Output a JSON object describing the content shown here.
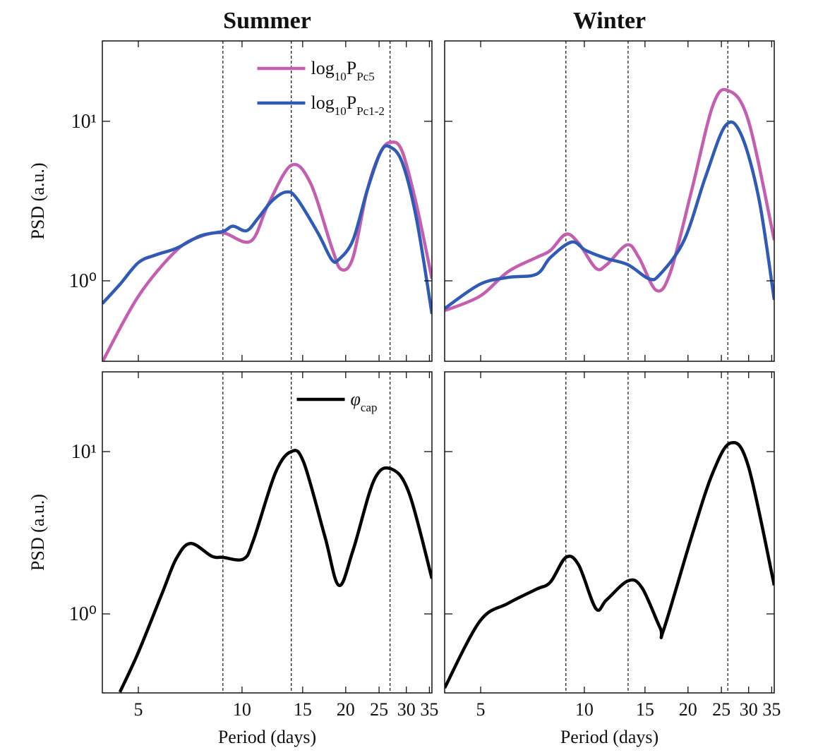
{
  "chart_data": [
    {
      "type": "line",
      "title": "Summer",
      "ylabel": "PSD (a.u.)",
      "xscale": "log",
      "yscale": "log",
      "xlim": [
        3.93,
        35.6
      ],
      "ylim": [
        0.313,
        31.9
      ],
      "xticks": [
        5,
        10,
        15,
        20,
        25,
        30,
        35
      ],
      "xtick_labels": false,
      "yticks": [
        {
          "value": 1,
          "label": "10⁰"
        },
        {
          "value": 10,
          "label": "10¹"
        }
      ],
      "ytick_labels": true,
      "vlines": [
        8.8,
        13.9,
        26.9
      ],
      "legend": "upper center",
      "series": [
        {
          "name": [
            "log",
            "10",
            "P",
            "Pc5"
          ],
          "color": "#c45fb0",
          "x": [
            3.93,
            5.0,
            6.45,
            7.6,
            8.8,
            10.6,
            11.9,
            13.9,
            15.8,
            18.2,
            19.4,
            21.0,
            23.1,
            25.3,
            27.2,
            29.2,
            32.1,
            35.6
          ],
          "values": [
            0.31,
            0.8,
            1.55,
            1.9,
            2.0,
            1.77,
            3.0,
            5.3,
            4.1,
            1.63,
            1.18,
            1.4,
            3.7,
            6.45,
            7.4,
            6.45,
            3.0,
            1.03
          ]
        },
        {
          "name": [
            "log",
            "10",
            "P",
            "Pc1-2"
          ],
          "color": "#2f5bb7",
          "x": [
            3.93,
            4.42,
            5.0,
            5.6,
            6.45,
            7.6,
            8.8,
            9.41,
            10.3,
            11.1,
            12.2,
            13.4,
            14.4,
            16.6,
            18.2,
            19.1,
            21.0,
            23.1,
            25.3,
            26.9,
            29.2,
            32.1,
            35.6
          ],
          "values": [
            0.72,
            0.95,
            1.3,
            1.45,
            1.6,
            1.92,
            2.04,
            2.2,
            2.06,
            2.45,
            3.16,
            3.6,
            3.3,
            2.0,
            1.36,
            1.36,
            1.8,
            3.7,
            6.45,
            6.9,
            5.5,
            2.45,
            0.62
          ]
        }
      ]
    },
    {
      "type": "line",
      "title": "Winter",
      "xscale": "log",
      "yscale": "log",
      "xlim": [
        3.93,
        35.6
      ],
      "ylim": [
        0.313,
        31.9
      ],
      "xticks": [
        5,
        10,
        15,
        20,
        25,
        30,
        35
      ],
      "xtick_labels": false,
      "yticks": [
        1,
        10
      ],
      "ytick_labels": false,
      "vlines": [
        8.84,
        13.4,
        26.1
      ],
      "series": [
        {
          "color": "#c45fb0",
          "x": [
            3.93,
            4.97,
            6.0,
            7.26,
            7.97,
            8.84,
            9.63,
            10.8,
            11.6,
            13.3,
            14.4,
            16.2,
            17.8,
            20.5,
            23.6,
            26.1,
            29.9,
            35.6
          ],
          "values": [
            0.65,
            0.8,
            1.14,
            1.4,
            1.55,
            1.96,
            1.72,
            1.2,
            1.26,
            1.68,
            1.4,
            0.87,
            1.14,
            3.7,
            12.5,
            15.6,
            10.2,
            1.8
          ]
        },
        {
          "color": "#2f5bb7",
          "x": [
            3.93,
            4.97,
            6.0,
            7.26,
            7.97,
            9.19,
            10.1,
            11.6,
            13.4,
            15.4,
            16.6,
            19.5,
            22.5,
            25.7,
            28.5,
            32.1,
            35.6
          ],
          "values": [
            0.67,
            0.95,
            1.05,
            1.1,
            1.4,
            1.75,
            1.55,
            1.38,
            1.26,
            1.03,
            1.1,
            1.8,
            4.5,
            9.4,
            8.3,
            3.3,
            0.76
          ]
        }
      ]
    },
    {
      "type": "line",
      "xlabel": "Period (days)",
      "ylabel": "PSD (a.u.)",
      "xscale": "log",
      "yscale": "log",
      "xlim": [
        3.93,
        35.6
      ],
      "ylim": [
        0.326,
        31
      ],
      "xticks": [
        5,
        10,
        15,
        20,
        25,
        30,
        35
      ],
      "xtick_labels": true,
      "yticks": [
        {
          "value": 1,
          "label": "10⁰"
        },
        {
          "value": 10,
          "label": "10¹"
        }
      ],
      "ytick_labels": true,
      "vlines": [
        8.8,
        13.9,
        26.9
      ],
      "legend": "upper center",
      "series": [
        {
          "name": [
            "φ",
            "cap"
          ],
          "color": "#000000",
          "x": [
            4.42,
            5.0,
            5.87,
            6.45,
            7.09,
            8.16,
            8.8,
            10.1,
            10.8,
            12.5,
            13.9,
            15.1,
            17.4,
            19.1,
            21.0,
            24.2,
            27.2,
            30.6,
            35.6
          ],
          "values": [
            0.33,
            0.58,
            1.35,
            2.2,
            2.72,
            2.27,
            2.23,
            2.18,
            2.86,
            7.4,
            10,
            8.6,
            3.0,
            1.5,
            2.46,
            6.7,
            7.8,
            5.5,
            1.65
          ]
        }
      ]
    },
    {
      "type": "line",
      "xlabel": "Period (days)",
      "xscale": "log",
      "yscale": "log",
      "xlim": [
        3.93,
        35.6
      ],
      "ylim": [
        0.326,
        31
      ],
      "xticks": [
        5,
        10,
        15,
        20,
        25,
        30,
        35
      ],
      "xtick_labels": true,
      "yticks": [
        1,
        10
      ],
      "ytick_labels": false,
      "vlines": [
        8.84,
        13.4,
        26.1
      ],
      "series": [
        {
          "color": "#000000",
          "x": [
            3.93,
            4.97,
            6.0,
            7.26,
            7.97,
            8.84,
            9.63,
            10.8,
            11.6,
            13.4,
            14.7,
            16.6,
            17.0,
            20.5,
            23.6,
            26.6,
            29.9,
            35.6
          ],
          "values": [
            0.35,
            0.9,
            1.16,
            1.42,
            1.57,
            2.23,
            2.0,
            1.08,
            1.22,
            1.6,
            1.45,
            0.82,
            0.8,
            3.0,
            7.4,
            11.3,
            8.2,
            1.5
          ]
        }
      ]
    }
  ]
}
